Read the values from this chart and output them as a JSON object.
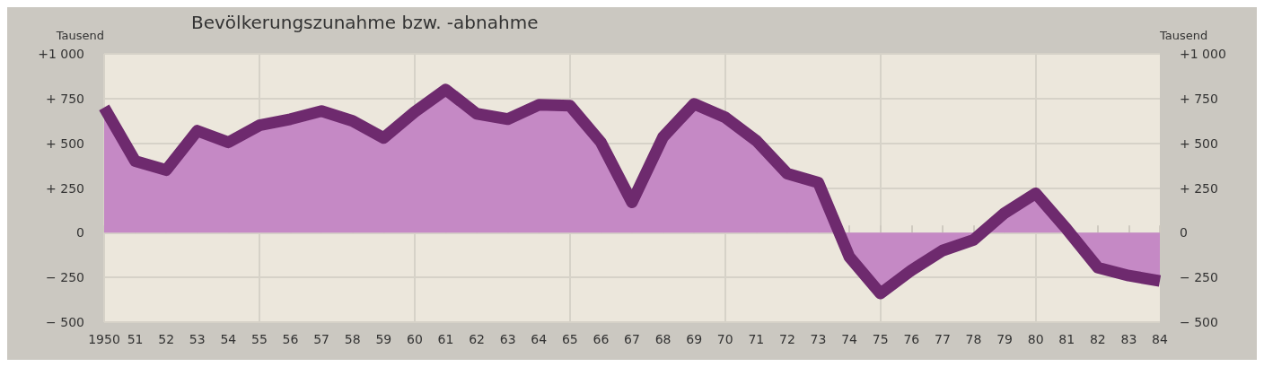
{
  "chart_data": {
    "type": "area",
    "title": "Bevölkerungszunahme bzw. -abnahme",
    "ylabel": "Tausend",
    "y2label": "Tausend",
    "categories": [
      "1950",
      "51",
      "52",
      "53",
      "54",
      "55",
      "56",
      "57",
      "58",
      "59",
      "60",
      "61",
      "62",
      "63",
      "64",
      "65",
      "66",
      "67",
      "68",
      "69",
      "70",
      "71",
      "72",
      "73",
      "74",
      "75",
      "76",
      "77",
      "78",
      "79",
      "80",
      "81",
      "82",
      "83",
      "84"
    ],
    "series": [
      {
        "color": "#6e2a6e",
        "values": [
          700,
          400,
          350,
          570,
          505,
          600,
          635,
          680,
          625,
          530,
          675,
          800,
          665,
          635,
          715,
          710,
          505,
          170,
          535,
          720,
          645,
          515,
          330,
          280,
          -135,
          -340,
          -210,
          -100,
          -40,
          110,
          220,
          20,
          -195,
          -240,
          -270
        ]
      }
    ],
    "ylim": [
      -500,
      1000
    ],
    "yticks": [
      {
        "value": 1000,
        "label": "+1 000"
      },
      {
        "value": 750,
        "label": "+ 750"
      },
      {
        "value": 500,
        "label": "+ 500"
      },
      {
        "value": 250,
        "label": "+ 250"
      },
      {
        "value": 0,
        "label": "0"
      },
      {
        "value": -250,
        "label": "− 250"
      },
      {
        "value": -500,
        "label": "− 500"
      }
    ],
    "y2lim": [
      -500,
      1000
    ],
    "y2ticks": [
      {
        "value": 1000,
        "label": "+1 000"
      },
      {
        "value": 750,
        "label": "+ 750"
      },
      {
        "value": 500,
        "label": "+ 500"
      },
      {
        "value": 250,
        "label": "+ 250"
      },
      {
        "value": 0,
        "label": "0"
      },
      {
        "value": -250,
        "label": "− 250"
      },
      {
        "value": -500,
        "label": "− 500"
      }
    ],
    "grid": true,
    "marker": "none",
    "line_style": "solid"
  }
}
